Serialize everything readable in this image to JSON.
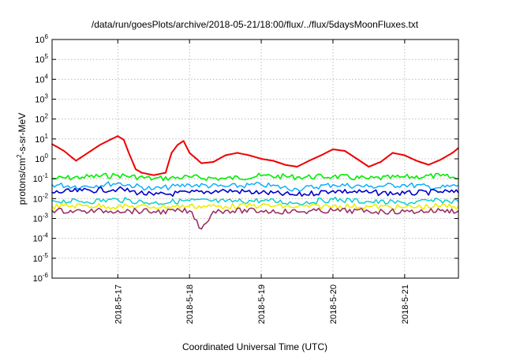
{
  "chart_data": {
    "type": "line",
    "title": "/data/run/goesPlots/archive/2018-05-21/18:00/flux/../flux/5daysMoonFluxes.txt",
    "xlabel": "Coordinated Universal Time (UTC)",
    "ylabel": {
      "base": "protons/cm",
      "sup": "2",
      "rest": "-s-sr-MeV"
    },
    "yscale": "log",
    "grid": true,
    "xlim": [
      "2018-05-16T02:00",
      "2018-05-21T18:00"
    ],
    "ylim": [
      1e-06,
      1000000.0
    ],
    "xticks": [
      "2018-5-17",
      "2018-5-18",
      "2018-5-19",
      "2018-5-20",
      "2018-5-21"
    ],
    "yticks": [
      {
        "base": "10",
        "exp": "-6"
      },
      {
        "base": "10",
        "exp": "-5"
      },
      {
        "base": "10",
        "exp": "-4"
      },
      {
        "base": "10",
        "exp": "-3"
      },
      {
        "base": "10",
        "exp": "-2"
      },
      {
        "base": "10",
        "exp": "-1"
      },
      {
        "base": "10",
        "exp": "0"
      },
      {
        "base": "10",
        "exp": "1"
      },
      {
        "base": "10",
        "exp": "2"
      },
      {
        "base": "10",
        "exp": "3"
      },
      {
        "base": "10",
        "exp": "4"
      },
      {
        "base": "10",
        "exp": "5"
      },
      {
        "base": "10",
        "exp": "6"
      }
    ],
    "series": [
      {
        "color": "#ee0000",
        "width": 2,
        "x": [
          "2018-05-16T02:00",
          "2018-05-16T06:00",
          "2018-05-16T10:00",
          "2018-05-16T14:00",
          "2018-05-16T18:00",
          "2018-05-16T22:00",
          "2018-05-17T00:00",
          "2018-05-17T02:00",
          "2018-05-17T04:00",
          "2018-05-17T06:00",
          "2018-05-17T08:00",
          "2018-05-17T12:00",
          "2018-05-17T16:00",
          "2018-05-17T18:00",
          "2018-05-17T20:00",
          "2018-05-17T22:00",
          "2018-05-18T00:00",
          "2018-05-18T04:00",
          "2018-05-18T08:00",
          "2018-05-18T12:00",
          "2018-05-18T16:00",
          "2018-05-18T20:00",
          "2018-05-19T00:00",
          "2018-05-19T04:00",
          "2018-05-19T08:00",
          "2018-05-19T12:00",
          "2018-05-19T16:00",
          "2018-05-19T20:00",
          "2018-05-20T00:00",
          "2018-05-20T04:00",
          "2018-05-20T08:00",
          "2018-05-20T12:00",
          "2018-05-20T16:00",
          "2018-05-20T20:00",
          "2018-05-21T00:00",
          "2018-05-21T04:00",
          "2018-05-21T08:00",
          "2018-05-21T12:00",
          "2018-05-21T16:00",
          "2018-05-21T18:00"
        ],
        "y": [
          5.5,
          2.5,
          0.8,
          2,
          5,
          10,
          14,
          9,
          1.5,
          0.3,
          0.2,
          0.15,
          0.2,
          2,
          5,
          8,
          2,
          0.6,
          0.7,
          1.5,
          2,
          1.5,
          1,
          0.8,
          0.5,
          0.4,
          0.8,
          1.5,
          3,
          2.5,
          1,
          0.4,
          0.7,
          2,
          1.5,
          0.8,
          0.5,
          0.9,
          2,
          3.5
        ]
      },
      {
        "color": "#00ee00",
        "width": 1.6,
        "x": [
          "2018-05-16T02:00",
          "2018-05-16T12:00",
          "2018-05-17T00:00",
          "2018-05-17T12:00",
          "2018-05-18T00:00",
          "2018-05-18T12:00",
          "2018-05-19T00:00",
          "2018-05-19T12:00",
          "2018-05-20T00:00",
          "2018-05-20T12:00",
          "2018-05-21T00:00",
          "2018-05-21T12:00",
          "2018-05-21T18:00"
        ],
        "y": [
          0.1,
          0.12,
          0.15,
          0.1,
          0.12,
          0.1,
          0.14,
          0.12,
          0.13,
          0.1,
          0.12,
          0.14,
          0.1
        ]
      },
      {
        "color": "#00aaff",
        "width": 1.4,
        "x": [
          "2018-05-16T02:00",
          "2018-05-16T12:00",
          "2018-05-17T00:00",
          "2018-05-17T12:00",
          "2018-05-18T00:00",
          "2018-05-18T12:00",
          "2018-05-19T00:00",
          "2018-05-19T12:00",
          "2018-05-20T00:00",
          "2018-05-20T12:00",
          "2018-05-21T00:00",
          "2018-05-21T12:00",
          "2018-05-21T18:00"
        ],
        "y": [
          0.05,
          0.04,
          0.06,
          0.03,
          0.05,
          0.04,
          0.05,
          0.03,
          0.05,
          0.04,
          0.05,
          0.035,
          0.045
        ]
      },
      {
        "color": "#0000cc",
        "width": 1.6,
        "x": [
          "2018-05-16T02:00",
          "2018-05-16T12:00",
          "2018-05-17T00:00",
          "2018-05-17T12:00",
          "2018-05-18T00:00",
          "2018-05-18T12:00",
          "2018-05-19T00:00",
          "2018-05-19T12:00",
          "2018-05-20T00:00",
          "2018-05-20T12:00",
          "2018-05-21T00:00",
          "2018-05-21T12:00",
          "2018-05-21T18:00"
        ],
        "y": [
          0.02,
          0.025,
          0.03,
          0.015,
          0.02,
          0.025,
          0.02,
          0.015,
          0.025,
          0.02,
          0.018,
          0.022,
          0.02
        ]
      },
      {
        "color": "#00cccc",
        "width": 1.4,
        "x": [
          "2018-05-16T02:00",
          "2018-05-16T12:00",
          "2018-05-17T00:00",
          "2018-05-17T12:00",
          "2018-05-18T00:00",
          "2018-05-18T12:00",
          "2018-05-19T00:00",
          "2018-05-19T12:00",
          "2018-05-20T00:00",
          "2018-05-20T12:00",
          "2018-05-21T00:00",
          "2018-05-21T12:00",
          "2018-05-21T18:00"
        ],
        "y": [
          0.008,
          0.007,
          0.009,
          0.006,
          0.008,
          0.007,
          0.008,
          0.006,
          0.009,
          0.007,
          0.006,
          0.008,
          0.007
        ]
      },
      {
        "color": "#eeee00",
        "width": 1.6,
        "x": [
          "2018-05-16T02:00",
          "2018-05-16T12:00",
          "2018-05-17T00:00",
          "2018-05-17T12:00",
          "2018-05-18T00:00",
          "2018-05-18T12:00",
          "2018-05-19T00:00",
          "2018-05-19T12:00",
          "2018-05-20T00:00",
          "2018-05-20T12:00",
          "2018-05-21T00:00",
          "2018-05-21T12:00",
          "2018-05-21T18:00"
        ],
        "y": [
          0.004,
          0.0045,
          0.004,
          0.0038,
          0.0042,
          0.004,
          0.0045,
          0.0038,
          0.0042,
          0.004,
          0.0036,
          0.0042,
          0.004
        ]
      },
      {
        "color": "#993366",
        "width": 1.6,
        "x": [
          "2018-05-16T02:00",
          "2018-05-16T12:00",
          "2018-05-17T00:00",
          "2018-05-17T12:00",
          "2018-05-18T00:00",
          "2018-05-18T04:00",
          "2018-05-18T08:00",
          "2018-05-18T12:00",
          "2018-05-19T00:00",
          "2018-05-19T12:00",
          "2018-05-20T00:00",
          "2018-05-20T12:00",
          "2018-05-21T00:00",
          "2018-05-21T12:00",
          "2018-05-21T18:00"
        ],
        "y": [
          0.0025,
          0.0023,
          0.0025,
          0.0022,
          0.0024,
          0.0003,
          0.0023,
          0.0025,
          0.0024,
          0.0022,
          0.0025,
          0.0023,
          0.0022,
          0.0025,
          0.0024
        ]
      }
    ]
  }
}
